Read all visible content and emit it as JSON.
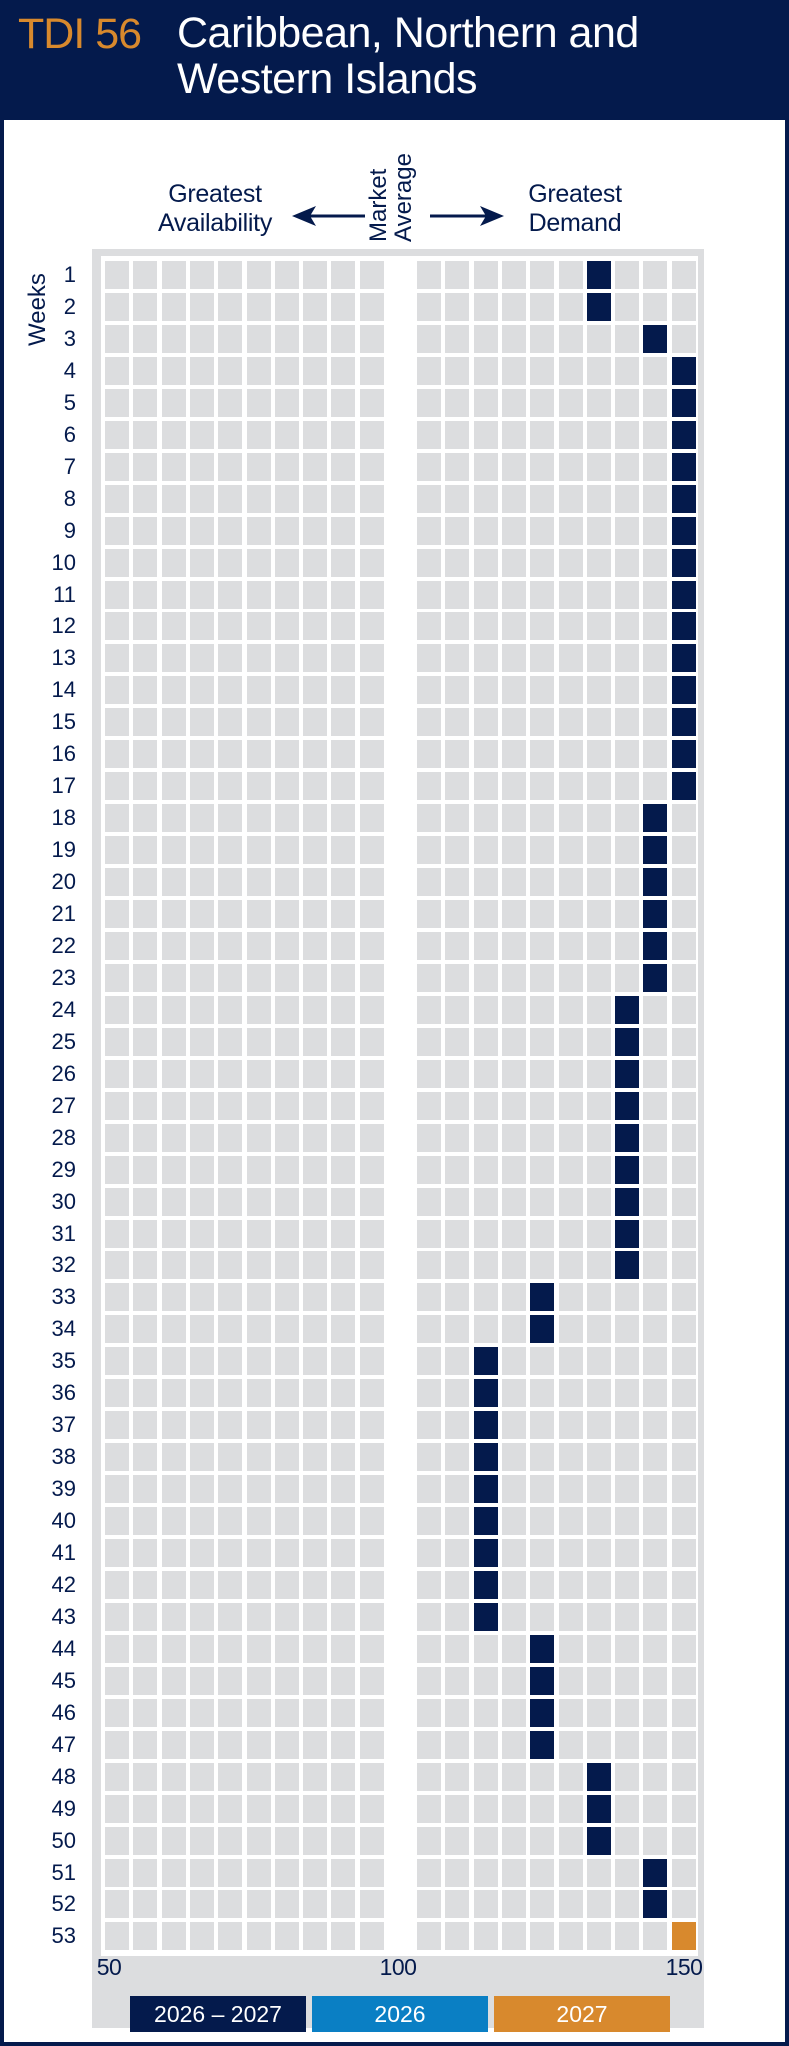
{
  "header": {
    "code": "TDI 56",
    "title_line1": "Caribbean, Northern and",
    "title_line2": "Western Islands"
  },
  "colors": {
    "navy": "#041a4c",
    "blue": "#0a7fc4",
    "orange": "#d8892d",
    "cell": "#dcdddf"
  },
  "chart_data": {
    "type": "heatmap",
    "title": "Caribbean, Northern and Western Islands",
    "left_label_line1": "Greatest",
    "left_label_line2": "Availability",
    "center_label_line1": "Market",
    "center_label_line2": "Average",
    "right_label_line1": "Greatest",
    "right_label_line2": "Demand",
    "ylabel": "Weeks",
    "x_ticks": [
      "50",
      "100",
      "150"
    ],
    "xlim": [
      50,
      150
    ],
    "columns": [
      50,
      55,
      60,
      65,
      70,
      75,
      80,
      85,
      90,
      95,
      105,
      110,
      115,
      120,
      125,
      130,
      135,
      140,
      145,
      150
    ],
    "weeks": [
      1,
      2,
      3,
      4,
      5,
      6,
      7,
      8,
      9,
      10,
      11,
      12,
      13,
      14,
      15,
      16,
      17,
      18,
      19,
      20,
      21,
      22,
      23,
      24,
      25,
      26,
      27,
      28,
      29,
      30,
      31,
      32,
      33,
      34,
      35,
      36,
      37,
      38,
      39,
      40,
      41,
      42,
      43,
      44,
      45,
      46,
      47,
      48,
      49,
      50,
      51,
      52,
      53
    ],
    "values": [
      135,
      135,
      145,
      150,
      150,
      150,
      150,
      150,
      150,
      150,
      150,
      150,
      150,
      150,
      150,
      150,
      150,
      145,
      145,
      145,
      145,
      145,
      145,
      140,
      140,
      140,
      140,
      140,
      140,
      140,
      140,
      140,
      125,
      125,
      115,
      115,
      115,
      115,
      115,
      115,
      115,
      115,
      115,
      125,
      125,
      125,
      125,
      135,
      135,
      135,
      145,
      145,
      150
    ],
    "series_of_week": [
      "2026 – 2027",
      "2026 – 2027",
      "2026 – 2027",
      "2026 – 2027",
      "2026 – 2027",
      "2026 – 2027",
      "2026 – 2027",
      "2026 – 2027",
      "2026 – 2027",
      "2026 – 2027",
      "2026 – 2027",
      "2026 – 2027",
      "2026 – 2027",
      "2026 – 2027",
      "2026 – 2027",
      "2026 – 2027",
      "2026 – 2027",
      "2026 – 2027",
      "2026 – 2027",
      "2026 – 2027",
      "2026 – 2027",
      "2026 – 2027",
      "2026 – 2027",
      "2026 – 2027",
      "2026 – 2027",
      "2026 – 2027",
      "2026 – 2027",
      "2026 – 2027",
      "2026 – 2027",
      "2026 – 2027",
      "2026 – 2027",
      "2026 – 2027",
      "2026 – 2027",
      "2026 – 2027",
      "2026 – 2027",
      "2026 – 2027",
      "2026 – 2027",
      "2026 – 2027",
      "2026 – 2027",
      "2026 – 2027",
      "2026 – 2027",
      "2026 – 2027",
      "2026 – 2027",
      "2026 – 2027",
      "2026 – 2027",
      "2026 – 2027",
      "2026 – 2027",
      "2026 – 2027",
      "2026 – 2027",
      "2026 – 2027",
      "2026 – 2027",
      "2026 – 2027",
      "2027"
    ],
    "legend": [
      {
        "label": "2026 – 2027",
        "color": "#041a4c"
      },
      {
        "label": "2026",
        "color": "#0a7fc4"
      },
      {
        "label": "2027",
        "color": "#d8892d"
      }
    ]
  }
}
